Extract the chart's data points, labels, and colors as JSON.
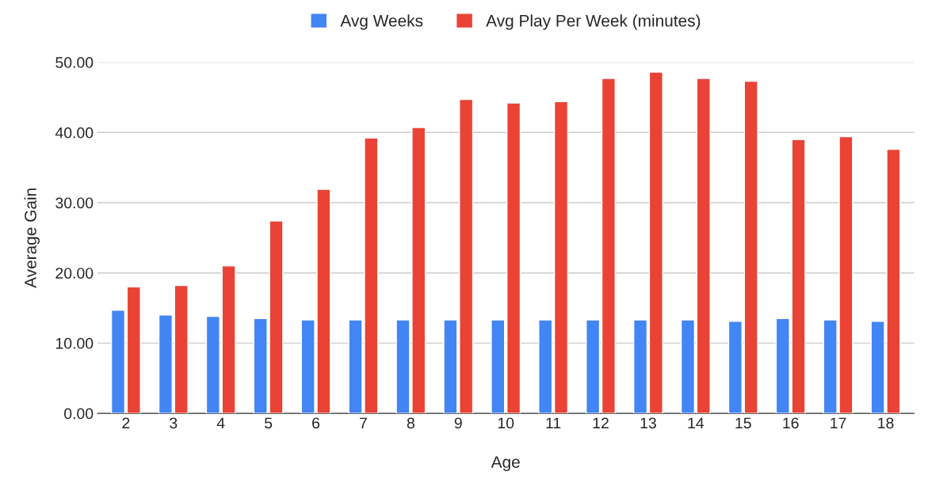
{
  "chart_data": {
    "type": "bar",
    "xlabel": "Age",
    "ylabel": "Average Gain",
    "categories": [
      "2",
      "3",
      "4",
      "5",
      "6",
      "7",
      "8",
      "9",
      "10",
      "11",
      "12",
      "13",
      "14",
      "15",
      "16",
      "17",
      "18"
    ],
    "series": [
      {
        "name": "Avg Weeks",
        "color": "#4285f4",
        "values": [
          14.7,
          14.0,
          13.8,
          13.5,
          13.3,
          13.3,
          13.3,
          13.3,
          13.3,
          13.3,
          13.3,
          13.3,
          13.3,
          13.1,
          13.5,
          13.3,
          13.1
        ]
      },
      {
        "name": "Avg Play Per Week (minutes)",
        "color": "#ea4335",
        "values": [
          18.0,
          18.2,
          21.0,
          27.4,
          31.9,
          39.2,
          40.7,
          44.7,
          44.2,
          44.4,
          47.7,
          48.6,
          47.7,
          47.3,
          39.0,
          39.4,
          37.6
        ]
      }
    ],
    "ylim": [
      0,
      50
    ],
    "yticks": [
      {
        "value": 0,
        "label": "0.00"
      },
      {
        "value": 10,
        "label": "10.00"
      },
      {
        "value": 20,
        "label": "20.00"
      },
      {
        "value": 30,
        "label": "30.00"
      },
      {
        "value": 40,
        "label": "40.00"
      },
      {
        "value": 50,
        "label": "50.00"
      }
    ],
    "grid": "y",
    "legend": "top"
  }
}
